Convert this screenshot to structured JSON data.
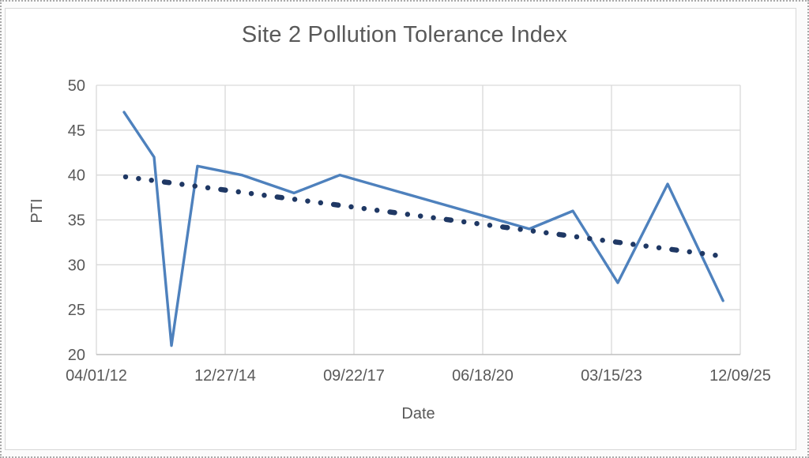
{
  "window": {
    "background": "#ffffff",
    "selection_border_color": "#a9a9a9",
    "chart_frame_border_color": "#d6d6d6"
  },
  "chart_data": {
    "type": "line",
    "title": "Site 2 Pollution Tolerance Index",
    "xlabel": "Date",
    "ylabel": "PTI",
    "x_axis": {
      "kind": "date",
      "tick_labels": [
        "04/01/12",
        "12/27/14",
        "09/22/17",
        "06/18/20",
        "03/15/23",
        "12/09/25"
      ],
      "tick_positions_days": [
        0,
        1000,
        2000,
        3000,
        4000,
        5000
      ],
      "xlim_days": [
        0,
        5000
      ],
      "major_unit_days": 1000
    },
    "y_axis": {
      "ticks": [
        20,
        25,
        30,
        35,
        40,
        45,
        50
      ],
      "ylim": [
        20,
        50
      ]
    },
    "grid": "both",
    "legend": "none",
    "colors": {
      "series_line": "#4e81bd",
      "trendline": "#1f3864",
      "gridline": "#d9d9d9",
      "axis_line": "#bfbfbf",
      "text": "#595959"
    },
    "series": [
      {
        "name": "PTI",
        "style": "solid",
        "color": "#4e81bd",
        "points": [
          {
            "x_days": 215,
            "y": 47
          },
          {
            "x_days": 448,
            "y": 42
          },
          {
            "x_days": 583,
            "y": 21
          },
          {
            "x_days": 785,
            "y": 41
          },
          {
            "x_days": 1129,
            "y": 40
          },
          {
            "x_days": 1534,
            "y": 38
          },
          {
            "x_days": 1890,
            "y": 40
          },
          {
            "x_days": 3362,
            "y": 34
          },
          {
            "x_days": 3700,
            "y": 36
          },
          {
            "x_days": 4049,
            "y": 28
          },
          {
            "x_days": 4436,
            "y": 39
          },
          {
            "x_days": 4866,
            "y": 26
          }
        ]
      },
      {
        "name": "Linear trendline",
        "style": "round-dot",
        "color": "#1f3864",
        "points": [
          {
            "x_days": 227,
            "y": 39.8
          },
          {
            "x_days": 4840,
            "y": 31.0
          }
        ]
      }
    ]
  }
}
